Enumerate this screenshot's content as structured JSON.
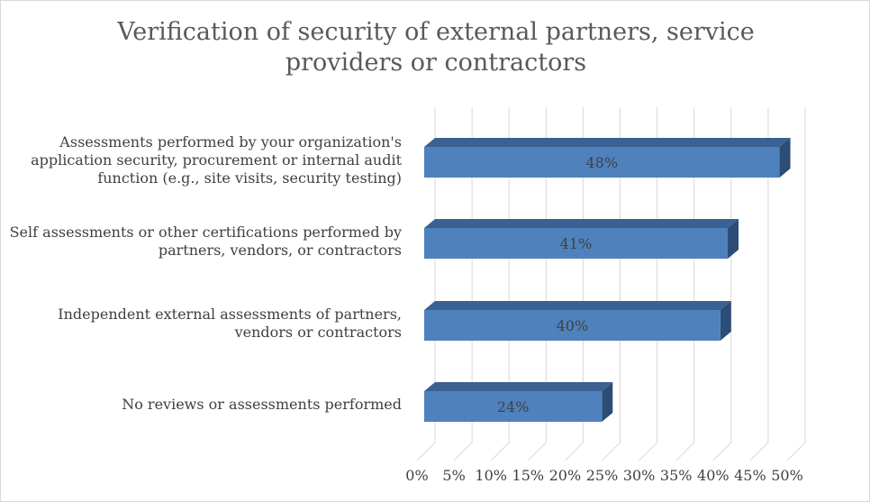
{
  "chart_data": {
    "type": "bar",
    "orientation": "horizontal",
    "three_d": true,
    "title": "Verification of security of external partners, service providers or contractors",
    "categories": [
      "Assessments performed by your organization's\napplication security, procurement or internal audit\nfunction (e.g., site visits, security testing)",
      "Self assessments or other certifications performed by\npartners, vendors, or contractors",
      "Independent external assessments of partners,\nvendors or contractors",
      "No reviews or assessments performed"
    ],
    "values": [
      48,
      41,
      40,
      24
    ],
    "value_labels": [
      "48%",
      "41%",
      "40%",
      "24%"
    ],
    "x_ticks": [
      "0%",
      "5%",
      "10%",
      "15%",
      "20%",
      "25%",
      "30%",
      "35%",
      "40%",
      "45%",
      "50%"
    ],
    "xlim": [
      0,
      50
    ],
    "grid": true,
    "legend": "none",
    "colors": {
      "bar_front": "#4f81bd",
      "bar_top": "#3b6193",
      "bar_side": "#2c4d75",
      "grid": "#d9d9d9",
      "text": "#404040",
      "title": "#595959"
    }
  }
}
